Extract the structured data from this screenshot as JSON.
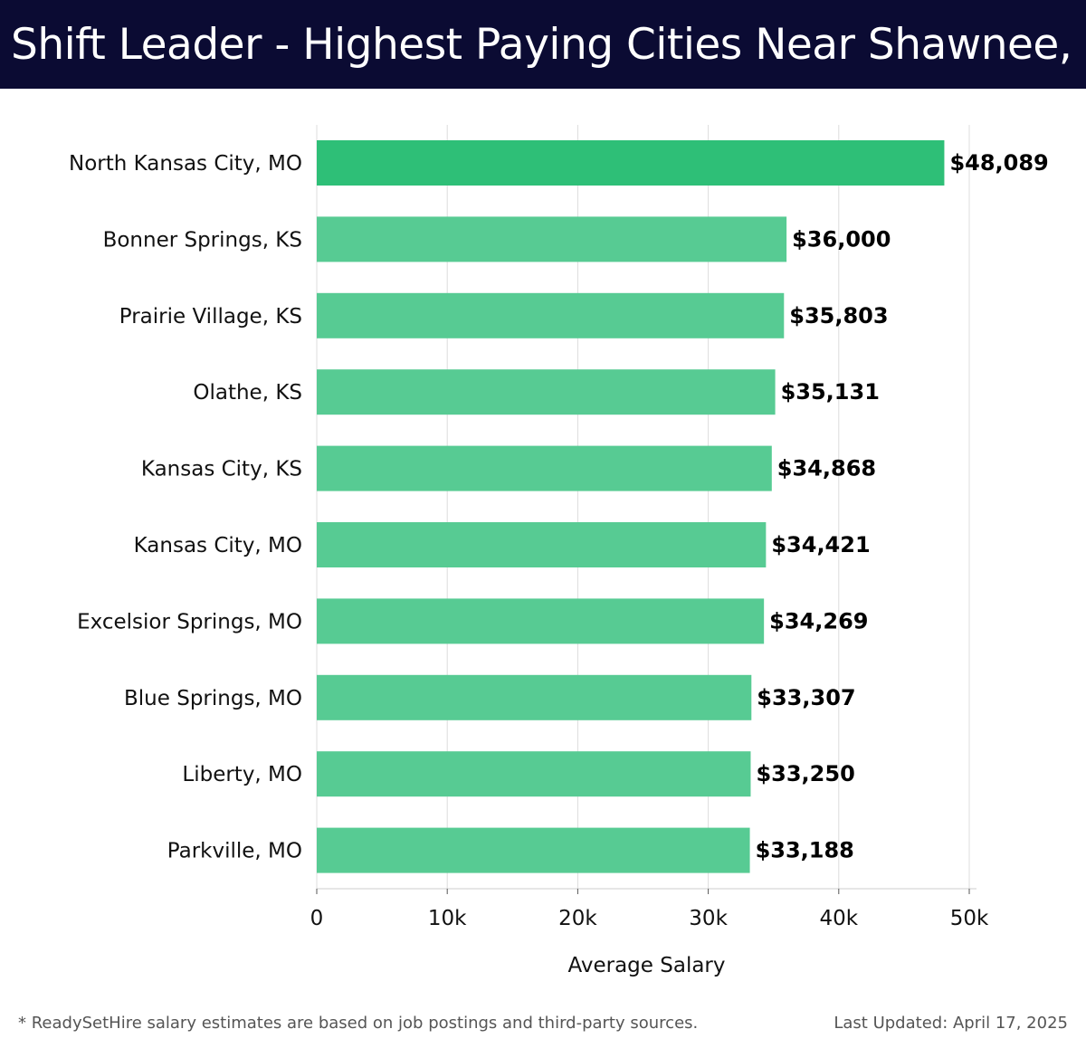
{
  "header": {
    "title": "Shift Leader - Highest Paying Cities Near Shawnee, KS"
  },
  "chart_data": {
    "type": "bar",
    "orientation": "horizontal",
    "categories": [
      "North Kansas City, MO",
      "Bonner Springs, KS",
      "Prairie Village, KS",
      "Olathe, KS",
      "Kansas City, KS",
      "Kansas City, MO",
      "Excelsior Springs, MO",
      "Blue Springs, MO",
      "Liberty, MO",
      "Parkville, MO"
    ],
    "values": [
      48089,
      36000,
      35803,
      35131,
      34868,
      34421,
      34269,
      33307,
      33250,
      33188
    ],
    "value_labels": [
      "$48,089",
      "$36,000",
      "$35,803",
      "$35,131",
      "$34,868",
      "$34,421",
      "$34,269",
      "$33,307",
      "$33,250",
      "$33,188"
    ],
    "xlabel": "Average Salary",
    "xlim": [
      0,
      50000
    ],
    "x_ticks": [
      0,
      10000,
      20000,
      30000,
      40000,
      50000
    ],
    "x_tick_labels": [
      "0",
      "10k",
      "20k",
      "30k",
      "40k",
      "50k"
    ],
    "grid": true,
    "colors": {
      "highlight_bar": "#2ebf77",
      "bar": "#57cb93",
      "grid": "#dddddd"
    }
  },
  "footer": {
    "note": "* ReadySetHire salary estimates are based on job postings and third-party sources.",
    "updated": "Last Updated: April 17, 2025"
  }
}
